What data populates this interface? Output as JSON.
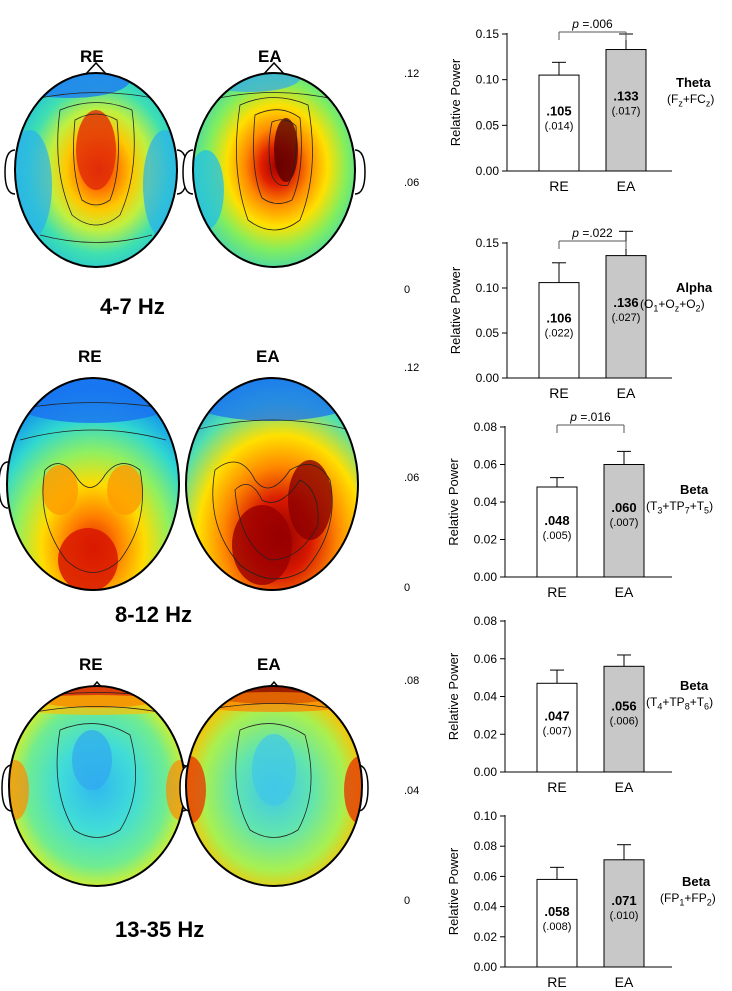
{
  "figure": {
    "condition_labels": [
      "RE",
      "EA"
    ],
    "bands": [
      {
        "label": "4-7 Hz",
        "colorbar": {
          "max": ".12",
          "mid": ".06",
          "min": "0"
        }
      },
      {
        "label": "8-12 Hz",
        "colorbar": {
          "max": ".12",
          "mid": ".06",
          "min": "0"
        }
      },
      {
        "label": "13-35 Hz",
        "colorbar": {
          "max": ".08",
          "mid": ".04",
          "min": "0"
        }
      }
    ]
  },
  "chart_data": [
    {
      "type": "bar",
      "categories": [
        "RE",
        "EA"
      ],
      "values": [
        0.105,
        0.133
      ],
      "errors": [
        0.014,
        0.017
      ],
      "value_labels": [
        ".105",
        ".133"
      ],
      "sd_labels": [
        "(.014)",
        "(.017)"
      ],
      "ylabel": "Relative Power",
      "ylim": [
        0,
        0.15
      ],
      "yticks": [
        "0.00",
        "0.05",
        "0.10",
        "0.15"
      ],
      "p_label": "p =.006",
      "band_name": "Theta",
      "sites": "(Fz+FCz)",
      "sites_parts": [
        [
          "(F",
          ""
        ],
        [
          "z",
          "sub"
        ],
        [
          "+FC",
          ""
        ],
        [
          "z",
          "sub"
        ],
        [
          ")",
          ""
        ]
      ]
    },
    {
      "type": "bar",
      "categories": [
        "RE",
        "EA"
      ],
      "values": [
        0.106,
        0.136
      ],
      "errors": [
        0.022,
        0.027
      ],
      "value_labels": [
        ".106",
        ".136"
      ],
      "sd_labels": [
        "(.022)",
        "(.027)"
      ],
      "ylabel": "Relative Power",
      "ylim": [
        0,
        0.15
      ],
      "yticks": [
        "0.00",
        "0.05",
        "0.10",
        "0.15"
      ],
      "p_label": "p =.022",
      "band_name": "Alpha",
      "sites": "(O1+Oz+O2)",
      "sites_parts": [
        [
          "(O",
          ""
        ],
        [
          "1",
          "sub"
        ],
        [
          "+O",
          ""
        ],
        [
          "z",
          "sub"
        ],
        [
          "+O",
          ""
        ],
        [
          "2",
          "sub"
        ],
        [
          ")",
          ""
        ]
      ]
    },
    {
      "type": "bar",
      "categories": [
        "RE",
        "EA"
      ],
      "values": [
        0.048,
        0.06
      ],
      "errors": [
        0.005,
        0.007
      ],
      "value_labels": [
        ".048",
        ".060"
      ],
      "sd_labels": [
        "(.005)",
        "(.007)"
      ],
      "ylabel": "Relative Power",
      "ylim": [
        0,
        0.08
      ],
      "yticks": [
        "0.00",
        "0.02",
        "0.04",
        "0.06",
        "0.08"
      ],
      "p_label": "p =.016",
      "band_name": "Beta",
      "sites": "(T3+TP7+T5)",
      "sites_parts": [
        [
          "(T",
          ""
        ],
        [
          "3",
          "sub"
        ],
        [
          "+TP",
          ""
        ],
        [
          "7",
          "sub"
        ],
        [
          "+T",
          ""
        ],
        [
          "5",
          "sub"
        ],
        [
          ")",
          ""
        ]
      ]
    },
    {
      "type": "bar",
      "categories": [
        "RE",
        "EA"
      ],
      "values": [
        0.047,
        0.056
      ],
      "errors": [
        0.007,
        0.006
      ],
      "value_labels": [
        ".047",
        ".056"
      ],
      "sd_labels": [
        "(.007)",
        "(.006)"
      ],
      "ylabel": "Relative Power",
      "ylim": [
        0,
        0.08
      ],
      "yticks": [
        "0.00",
        "0.02",
        "0.04",
        "0.06",
        "0.08"
      ],
      "p_label": "",
      "band_name": "Beta",
      "sites": "(T4+TP8+T6)",
      "sites_parts": [
        [
          "(T",
          ""
        ],
        [
          "4",
          "sub"
        ],
        [
          "+TP",
          ""
        ],
        [
          "8",
          "sub"
        ],
        [
          "+T",
          ""
        ],
        [
          "6",
          "sub"
        ],
        [
          ")",
          ""
        ]
      ]
    },
    {
      "type": "bar",
      "categories": [
        "RE",
        "EA"
      ],
      "values": [
        0.058,
        0.071
      ],
      "errors": [
        0.008,
        0.01
      ],
      "value_labels": [
        ".058",
        ".071"
      ],
      "sd_labels": [
        "(.008)",
        "(.010)"
      ],
      "ylabel": "Relative Power",
      "ylim": [
        0,
        0.1
      ],
      "yticks": [
        "0.00",
        "0.02",
        "0.04",
        "0.06",
        "0.08",
        "0.10"
      ],
      "p_label": "",
      "band_name": "Beta",
      "sites": "(FP1+FP2)",
      "sites_parts": [
        [
          "(FP",
          ""
        ],
        [
          "1",
          "sub"
        ],
        [
          "+FP",
          ""
        ],
        [
          "2",
          "sub"
        ],
        [
          ")",
          ""
        ]
      ]
    }
  ],
  "colors": {
    "ea_bar": "#c8c8c8",
    "re_bar": "#ffffff",
    "colormap": [
      "#00008b",
      "#0050ff",
      "#00c8ff",
      "#3ce6a0",
      "#b4f03c",
      "#ffe600",
      "#ff9600",
      "#e61e00",
      "#8b0000"
    ]
  }
}
